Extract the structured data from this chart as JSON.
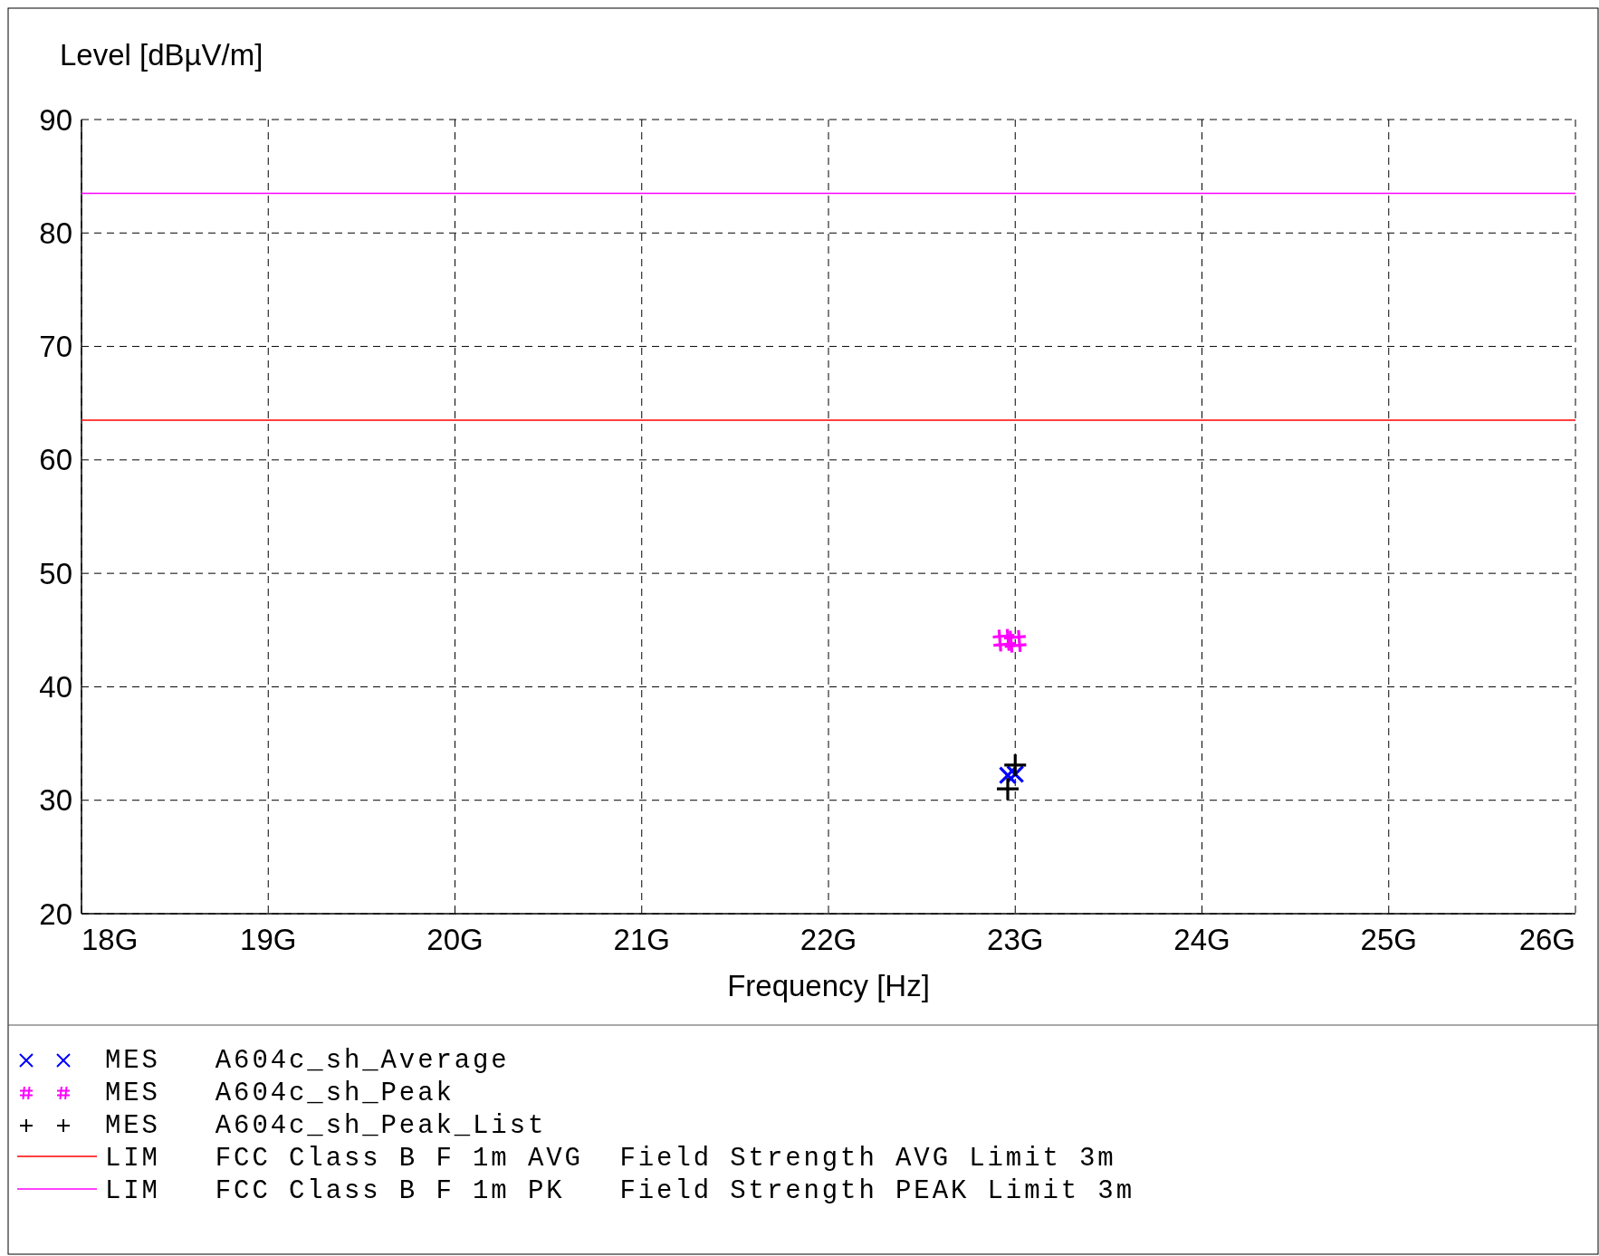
{
  "chart_data": {
    "type": "scatter",
    "ylabel": "Level [dBµV/m]",
    "xlabel": "Frequency [Hz]",
    "xlim": [
      18,
      26
    ],
    "xticks": [
      {
        "value": 18,
        "label": "18G"
      },
      {
        "value": 19,
        "label": "19G"
      },
      {
        "value": 20,
        "label": "20G"
      },
      {
        "value": 21,
        "label": "21G"
      },
      {
        "value": 22,
        "label": "22G"
      },
      {
        "value": 23,
        "label": "23G"
      },
      {
        "value": 24,
        "label": "24G"
      },
      {
        "value": 25,
        "label": "25G"
      },
      {
        "value": 26,
        "label": "26G"
      }
    ],
    "ylim": [
      20,
      90
    ],
    "yticks": [
      20,
      30,
      40,
      50,
      60,
      70,
      80,
      90
    ],
    "grid": true,
    "legend": "bottom",
    "series": [
      {
        "name": "MES   A604c_sh_Average",
        "marker": "x",
        "color": "#0000ff",
        "x": [
          22.96,
          23.0
        ],
        "values": [
          32.2,
          32.3
        ]
      },
      {
        "name": "MES   A604c_sh_Peak",
        "color": "#ff00ff",
        "x": [
          22.94,
          23.0
        ],
        "values": [
          44.1,
          44.0
        ]
      },
      {
        "name": "MES   A604c_sh_Peak_List",
        "marker": "cross",
        "color": "#000000",
        "x": [
          22.96,
          23.0
        ],
        "values": [
          31.0,
          33.1
        ]
      },
      {
        "name": "LIM   FCC Class B F 1m AVG  Field Strength AVG Limit 3m",
        "type": "line",
        "color": "#ff0000",
        "x": [
          18,
          26
        ],
        "values": [
          63.5,
          63.5
        ]
      },
      {
        "name": "LIM   FCC Class B F 1m PK   Field Strength PEAK Limit 3m",
        "type": "line",
        "color": "#ff00ff",
        "x": [
          18,
          26
        ],
        "values": [
          83.5,
          83.5
        ]
      }
    ]
  }
}
